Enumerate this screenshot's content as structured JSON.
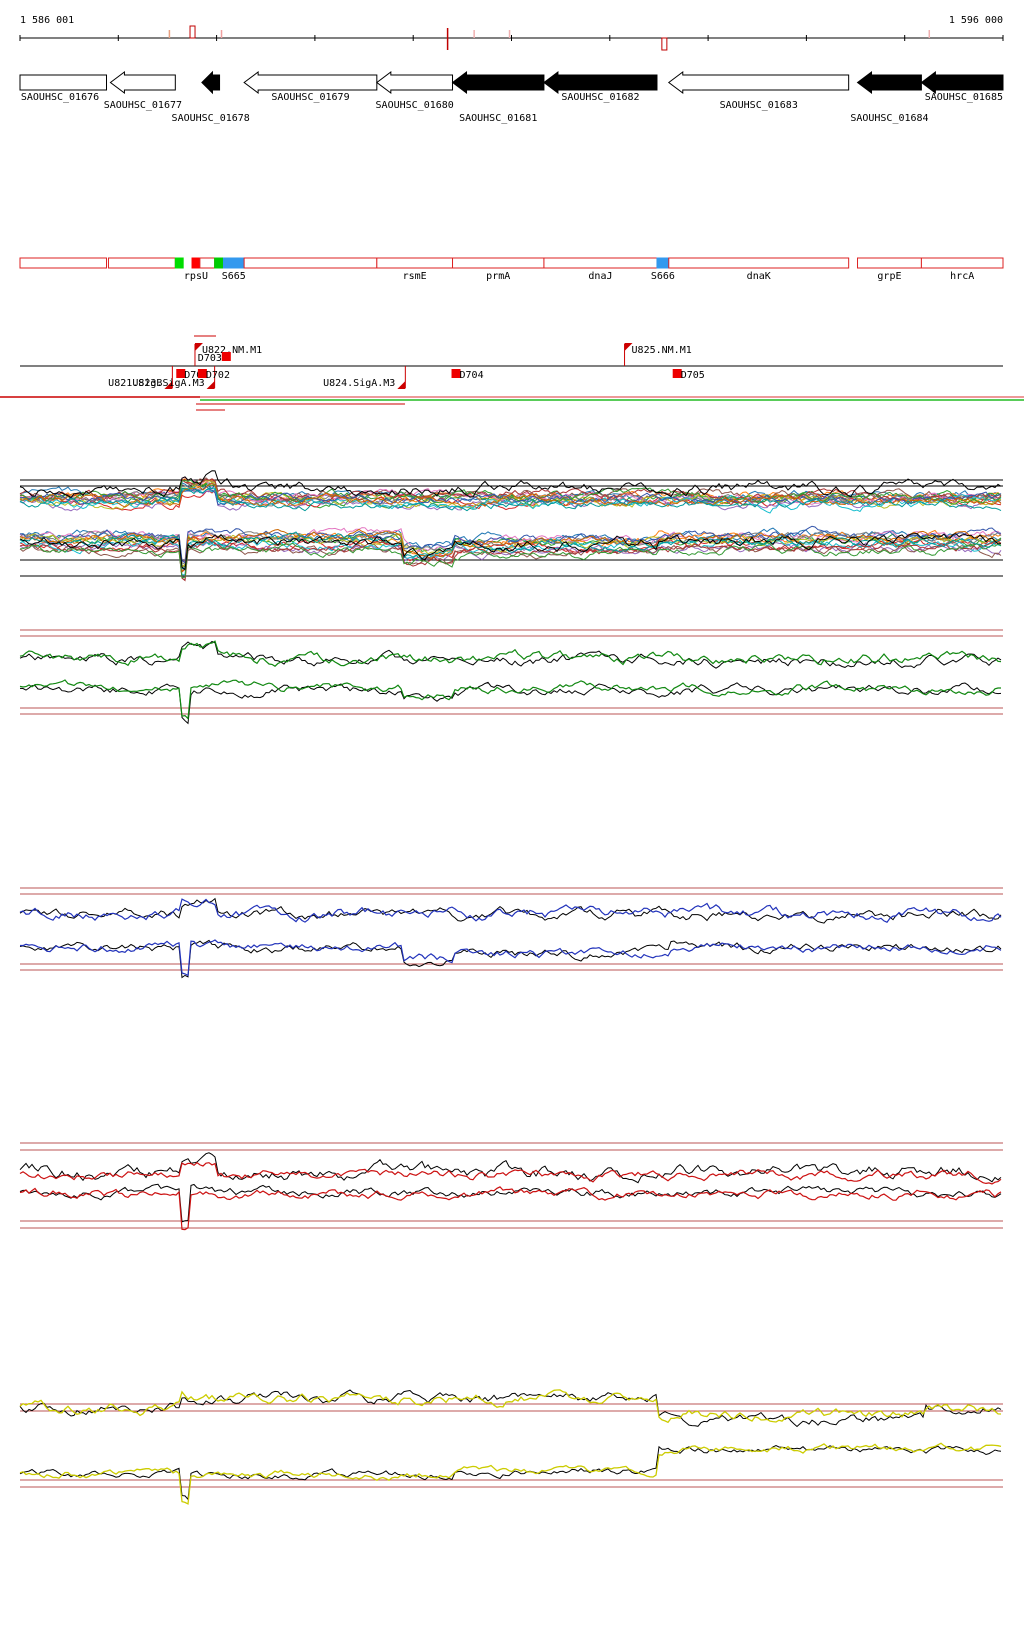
{
  "ruler": {
    "start_label": "1 586 001",
    "end_label": "1 596 000",
    "markers": [
      {
        "pos": 0.152,
        "strand": "top",
        "color": "#e8a080"
      },
      {
        "pos": 0.175,
        "strand": "top",
        "color": "#c00000",
        "box": true
      },
      {
        "pos": 0.205,
        "strand": "top",
        "color": "#f0a0a0"
      },
      {
        "pos": 0.435,
        "strand": "both",
        "color": "#c00000"
      },
      {
        "pos": 0.462,
        "strand": "top",
        "color": "#f0b0b0"
      },
      {
        "pos": 0.498,
        "strand": "top",
        "color": "#f0b0b0"
      },
      {
        "pos": 0.655,
        "strand": "bottom",
        "color": "#c00000",
        "box": true
      },
      {
        "pos": 0.925,
        "strand": "top",
        "color": "#f0b0b0"
      }
    ]
  },
  "genes": [
    {
      "id": "SAOUHSC_01676",
      "start": 0.0,
      "end": 0.088,
      "dir": "none",
      "filled": false,
      "row": 0
    },
    {
      "id": "SAOUHSC_01677",
      "start": 0.092,
      "end": 0.158,
      "dir": "left",
      "filled": false,
      "row": 1
    },
    {
      "id": "SAOUHSC_01678",
      "start": 0.185,
      "end": 0.203,
      "dir": "left",
      "filled": true,
      "row": 2
    },
    {
      "id": "SAOUHSC_01679",
      "start": 0.228,
      "end": 0.363,
      "dir": "left",
      "filled": false,
      "row": 0
    },
    {
      "id": "SAOUHSC_01680",
      "start": 0.363,
      "end": 0.44,
      "dir": "left",
      "filled": false,
      "row": 1
    },
    {
      "id": "SAOUHSC_01681",
      "start": 0.44,
      "end": 0.533,
      "dir": "left",
      "filled": true,
      "row": 2
    },
    {
      "id": "SAOUHSC_01682",
      "start": 0.533,
      "end": 0.648,
      "dir": "left",
      "filled": true,
      "row": 0
    },
    {
      "id": "SAOUHSC_01683",
      "start": 0.66,
      "end": 0.843,
      "dir": "left",
      "filled": false,
      "row": 1
    },
    {
      "id": "SAOUHSC_01684",
      "start": 0.852,
      "end": 0.917,
      "dir": "left",
      "filled": true,
      "row": 2
    },
    {
      "id": "SAOUHSC_01685",
      "start": 0.917,
      "end": 1.0,
      "dir": "left",
      "filled": true,
      "row": 0
    }
  ],
  "features": [
    {
      "start": 0.0,
      "end": 0.088,
      "label": "",
      "color": "#ffffff"
    },
    {
      "start": 0.09,
      "end": 0.158,
      "label": "",
      "color": "#ffffff"
    },
    {
      "start": 0.158,
      "end": 0.166,
      "label": "",
      "color": "#00dd00"
    },
    {
      "start": 0.175,
      "end": 0.183,
      "label": "rpsU",
      "color": "#ff0000"
    },
    {
      "start": 0.183,
      "end": 0.198,
      "label": "",
      "color": "#ffffff"
    },
    {
      "start": 0.198,
      "end": 0.207,
      "label": "",
      "color": "#00cc00"
    },
    {
      "start": 0.207,
      "end": 0.228,
      "label": "S665",
      "color": "#3399ee"
    },
    {
      "start": 0.228,
      "end": 0.363,
      "label": "",
      "color": "#ffffff"
    },
    {
      "start": 0.363,
      "end": 0.44,
      "label": "rsmE",
      "color": "#ffffff"
    },
    {
      "start": 0.44,
      "end": 0.533,
      "label": "prmA",
      "color": "#ffffff"
    },
    {
      "start": 0.533,
      "end": 0.648,
      "label": "dnaJ",
      "color": "#ffffff"
    },
    {
      "start": 0.648,
      "end": 0.66,
      "label": "S666",
      "color": "#3399ee"
    },
    {
      "start": 0.66,
      "end": 0.843,
      "label": "dnaK",
      "color": "#ffffff"
    },
    {
      "start": 0.852,
      "end": 0.917,
      "label": "grpE",
      "color": "#ffffff"
    },
    {
      "start": 0.917,
      "end": 1.0,
      "label": "hrcA",
      "color": "#ffffff"
    }
  ],
  "promoters": [
    {
      "label": "U822.NM.M1",
      "pos": 0.178,
      "strand": "top"
    },
    {
      "label": "U825.NM.M1",
      "pos": 0.615,
      "strand": "top"
    },
    {
      "label": "U821.SigB",
      "pos": 0.155,
      "strand": "bottom"
    },
    {
      "label": "U823.SigA.M3",
      "pos": 0.198,
      "strand": "bottom"
    },
    {
      "label": "U824.SigA.M3",
      "pos": 0.392,
      "strand": "bottom"
    }
  ],
  "terminators": [
    {
      "label": "D703",
      "pos": 0.188,
      "strand": "top"
    },
    {
      "label": "D701",
      "pos": 0.16,
      "strand": "bottom"
    },
    {
      "label": "D702",
      "pos": 0.182,
      "strand": "bottom"
    },
    {
      "label": "D704",
      "pos": 0.44,
      "strand": "bottom"
    },
    {
      "label": "D705",
      "pos": 0.665,
      "strand": "bottom"
    }
  ],
  "series_colors": [
    "#000000",
    "#008800",
    "#0022bb",
    "#cc0000",
    "#cccc00"
  ]
}
